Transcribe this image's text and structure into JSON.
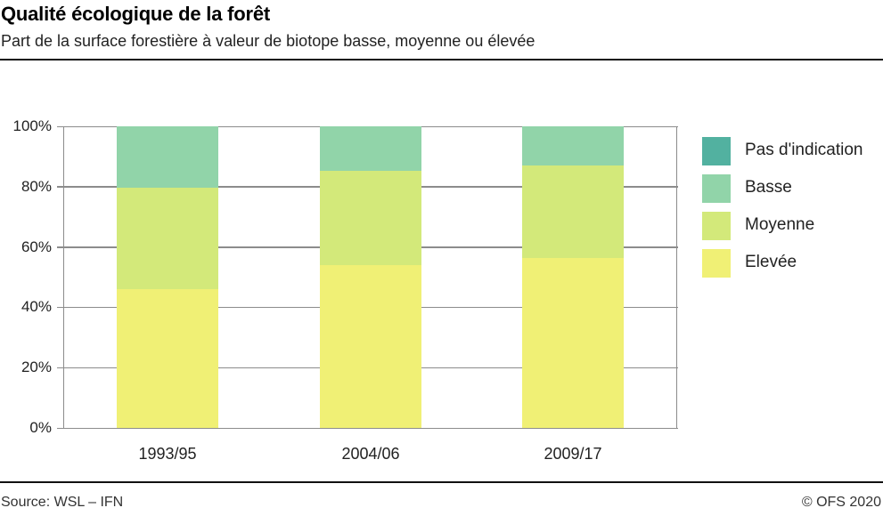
{
  "header": {
    "title": "Qualité écologique de la forêt",
    "subtitle": "Part de la surface forestière à valeur de biotope basse, moyenne ou élevée"
  },
  "footer": {
    "source": "Source:  WSL – IFN",
    "copyright": "© OFS 2020"
  },
  "colors": {
    "Pas d'indication": "#52b1a0",
    "Basse": "#91d4a9",
    "Moyenne": "#d3e97a",
    "Elevée": "#f0f075",
    "grid": "#8c8c8c"
  },
  "yaxis": {
    "ticks": [
      "0%",
      "20%",
      "40%",
      "60%",
      "80%",
      "100%"
    ]
  },
  "legend": [
    {
      "label": "Pas d'indication",
      "color": "#52b1a0"
    },
    {
      "label": "Basse",
      "color": "#91d4a9"
    },
    {
      "label": "Moyenne",
      "color": "#d3e97a"
    },
    {
      "label": "Elevée",
      "color": "#f0f075"
    }
  ],
  "chart_data": {
    "type": "bar",
    "stacked": true,
    "title": "Qualité écologique de la forêt",
    "subtitle": "Part de la surface forestière à valeur de biotope basse, moyenne ou élevée",
    "xlabel": "",
    "ylabel": "",
    "ylim": [
      0,
      100
    ],
    "yticks": [
      "0%",
      "20%",
      "40%",
      "60%",
      "80%",
      "100%"
    ],
    "grid": true,
    "legend_position": "right",
    "categories": [
      "1993/95",
      "2004/06",
      "2009/17"
    ],
    "series": [
      {
        "name": "Elevée",
        "color": "#f0f075",
        "values": [
          46.0,
          54.1,
          56.2
        ]
      },
      {
        "name": "Moyenne",
        "color": "#d3e97a",
        "values": [
          33.7,
          31.1,
          30.8
        ]
      },
      {
        "name": "Basse",
        "color": "#91d4a9",
        "values": [
          20.3,
          14.8,
          13.0
        ]
      },
      {
        "name": "Pas d'indication",
        "color": "#52b1a0",
        "values": [
          0,
          0,
          0
        ]
      }
    ],
    "source": "Source:  WSL – IFN",
    "copyright": "© OFS 2020"
  }
}
